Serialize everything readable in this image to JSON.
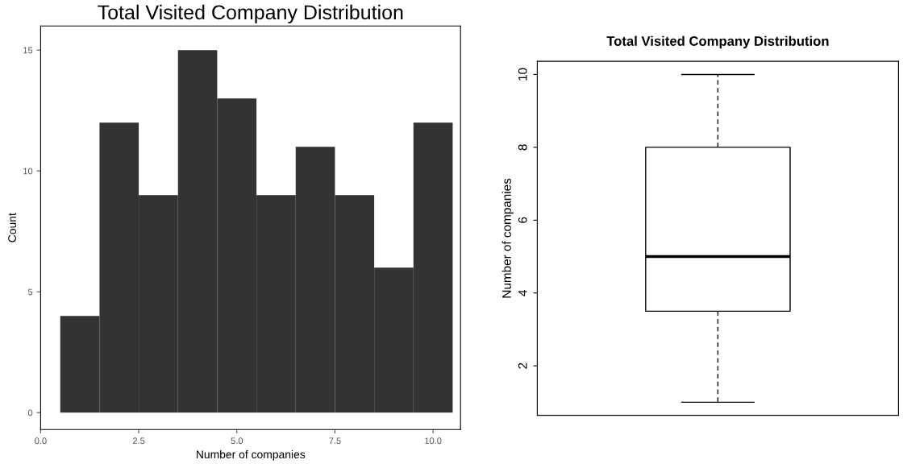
{
  "chart_data": [
    {
      "type": "histogram",
      "title": "Total Visited Company Distribution",
      "xlabel": "Number of companies",
      "ylabel": "Count",
      "color": "#333333",
      "bins": [
        0.5,
        1.5,
        2.5,
        3.5,
        4.5,
        5.5,
        6.5,
        7.5,
        8.5,
        9.5,
        10.5
      ],
      "values": [
        4,
        12,
        9,
        15,
        13,
        9,
        11,
        9,
        6,
        12
      ],
      "xlim": [
        0,
        10.7
      ],
      "xticks": [
        {
          "value": 0,
          "label": "0.0"
        },
        2.5,
        {
          "value": 5,
          "label": "5.0"
        },
        7.5,
        {
          "value": 10,
          "label": "10.0"
        }
      ],
      "ylim": [
        -0.7,
        16
      ],
      "yticks": [
        0,
        5,
        10,
        15
      ],
      "grid": false
    },
    {
      "type": "box",
      "title": "Total Visited Company Distribution",
      "ylabel": "Number of companies",
      "categories": [
        null
      ],
      "boxes": [
        {
          "low": 1,
          "q1": 3.5,
          "median": 5,
          "q3": 8,
          "high": 10
        }
      ],
      "ylim": [
        0.64,
        10.36
      ],
      "yticks": [
        2,
        4,
        6,
        8,
        10
      ],
      "tick_labels": "y",
      "grid": false
    }
  ]
}
